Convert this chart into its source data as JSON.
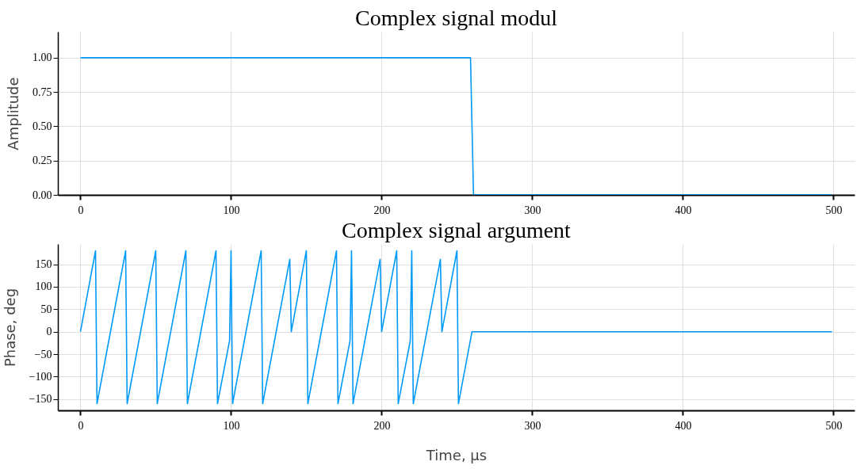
{
  "chart_data": [
    {
      "type": "line",
      "title": "Complex signal modul",
      "ylabel": "Amplitude",
      "xlim": [
        -15,
        514
      ],
      "xticks": [
        0,
        100,
        200,
        300,
        400,
        500
      ],
      "ylim": [
        0,
        1.19
      ],
      "yticks": [
        {
          "value": 0,
          "label": "0.00"
        },
        {
          "value": 0.25,
          "label": "0.25"
        },
        {
          "value": 0.5,
          "label": "0.50"
        },
        {
          "value": 0.75,
          "label": "0.75"
        },
        {
          "value": 1,
          "label": "1.00"
        }
      ],
      "grid": true,
      "series": [
        {
          "color": "#009af9",
          "x": [
            0,
            259,
            261,
            499
          ],
          "values": [
            1,
            1,
            0,
            0
          ]
        }
      ]
    },
    {
      "type": "line",
      "title": "Complex signal argument",
      "xlabel": "Time, μs",
      "ylabel": "Phase, deg",
      "xlim": [
        -15,
        514
      ],
      "xticks": [
        0,
        100,
        200,
        300,
        400,
        500
      ],
      "ylim": [
        -175,
        195
      ],
      "yticks": [
        -150,
        -100,
        -50,
        0,
        50,
        100,
        150
      ],
      "grid": true,
      "series": [
        {
          "color": "#009af9",
          "x": [
            0,
            10,
            11,
            30,
            31,
            50,
            51,
            70,
            71,
            90,
            91,
            99,
            100,
            101,
            120,
            121,
            139,
            140,
            150,
            151,
            170,
            171,
            179,
            180,
            181,
            199,
            200,
            210,
            211,
            219,
            220,
            221,
            239,
            240,
            250,
            251,
            260,
            499
          ],
          "values": [
            0,
            180,
            -160,
            180,
            -160,
            180,
            -160,
            180,
            -160,
            180,
            -160,
            -20,
            180,
            -160,
            180,
            -160,
            161,
            0,
            180,
            -160,
            180,
            -160,
            -20,
            180,
            -160,
            161,
            0,
            180,
            -160,
            -20,
            180,
            -160,
            161,
            0,
            180,
            -160,
            0,
            0
          ]
        }
      ]
    }
  ]
}
